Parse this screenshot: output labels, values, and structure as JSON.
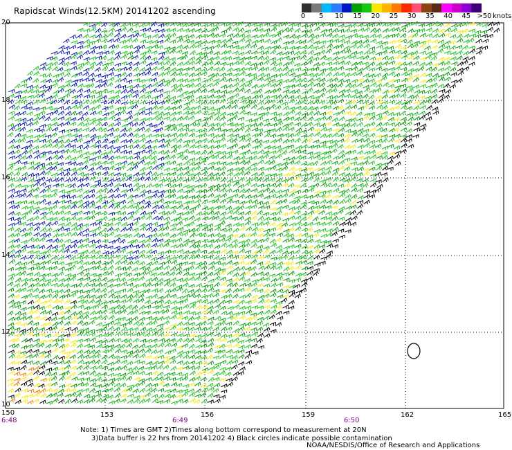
{
  "title": "Rapidscat Winds(12.5KM) 20141202 ascending",
  "legend": {
    "colors": [
      "#2f2f2f",
      "#7a7a7a",
      "#00b8ff",
      "#2f7dff",
      "#0014c8",
      "#00a000",
      "#12c812",
      "#ffe600",
      "#ffb400",
      "#ff7800",
      "#ff2800",
      "#ff5078",
      "#8b4513",
      "#5a2814",
      "#ff00ff",
      "#c800c8",
      "#8c00d2",
      "#3c0078"
    ],
    "labels": [
      "0",
      "5",
      "10",
      "15",
      "20",
      "25",
      "30",
      "35",
      "40",
      "45",
      ">50"
    ],
    "units": "knots"
  },
  "axes": {
    "lon_labels": [
      "150",
      "153",
      "156",
      "159",
      "162",
      "165"
    ],
    "lat_labels": [
      "20",
      "18",
      "16",
      "14",
      "12",
      "10"
    ]
  },
  "times": [
    "6:48",
    "6:49",
    "6:50"
  ],
  "notes": "Note: 1) Times are GMT 2)Times along bottom correspond to measurement at 20N\n     3)Data buffer is 22 hrs from 20141202 4) Black circles indicate possible contamination",
  "credit": "NOAA/NESDIS/Office of Research and Applications",
  "wind_colors": {
    "calm": "#000000",
    "light": "#0014c8",
    "moderate": "#00a000",
    "fresh": "#12c812",
    "strong": "#ffe600",
    "gale": "#ff7800"
  }
}
